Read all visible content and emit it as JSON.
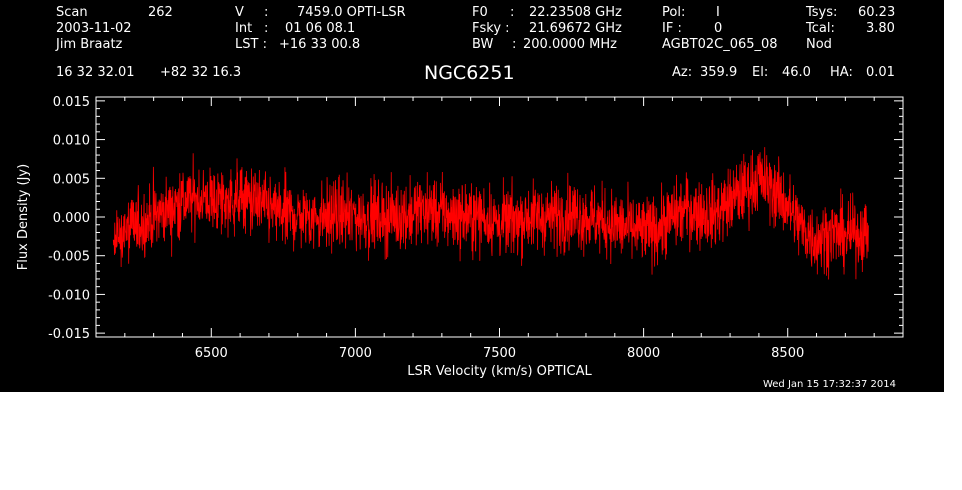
{
  "header": {
    "scan_label": "Scan",
    "scan_value": "262",
    "date": "2003-11-02",
    "observer": "Jim Braatz",
    "v_label": "V",
    "v_sep": ":",
    "v_value": "7459.0 OPTI-LSR",
    "int_label": "Int",
    "int_sep": ":",
    "int_value": "01 06 08.1",
    "lst_label": "LST :",
    "lst_value": "+16 33 00.8",
    "f0_label": "F0",
    "f0_sep": ":",
    "f0_value": "22.23508 GHz",
    "fsky_label": "Fsky :",
    "fsky_value": "21.69672 GHz",
    "bw_label": "BW",
    "bw_sep": ":",
    "bw_value": "200.0000 MHz",
    "pol_label": "Pol:",
    "pol_value": "I",
    "if_label": "IF :",
    "if_value": "0",
    "project": "AGBT02C_065_08",
    "tsys_label": "Tsys:",
    "tsys_value": "60.23",
    "tcal_label": "Tcal:",
    "tcal_value": "3.80",
    "mode": "Nod",
    "ra": "16 32 32.01",
    "dec": "+82 32 16.3",
    "object": "NGC6251",
    "az_label": "Az:",
    "az_value": "359.9",
    "el_label": "El:",
    "el_value": "46.0",
    "ha_label": "HA:",
    "ha_value": "0.01"
  },
  "timestamp": "Wed Jan 15 17:32:37 2014",
  "colors": {
    "background": "#000000",
    "axes": "#ffffff",
    "trace": "#ff0000"
  },
  "chart_data": {
    "type": "line",
    "title": "NGC6251",
    "xlabel": "LSR Velocity (km/s) OPTICAL",
    "ylabel": "Flux Density (Jy)",
    "xlim": [
      6100,
      8900
    ],
    "ylim": [
      -0.0155,
      0.0155
    ],
    "xticks": [
      6500,
      7000,
      7500,
      8000,
      8500
    ],
    "xtick_labels": [
      "6500",
      "7000",
      "7500",
      "8000",
      "8500"
    ],
    "yticks": [
      0.015,
      0.01,
      0.005,
      0.0,
      -0.005,
      -0.01,
      -0.015
    ],
    "ytick_labels": [
      "0.015",
      "0.010",
      "0.005",
      "0.000",
      "-0.005",
      "-0.010",
      "-0.015"
    ],
    "grid": false,
    "series": [
      {
        "color": "#ff0000",
        "x": [
          6160,
          6200,
          6250,
          6300,
          6350,
          6400,
          6450,
          6500,
          6550,
          6600,
          6650,
          6700,
          6750,
          6800,
          6850,
          6900,
          6950,
          7000,
          7050,
          7100,
          7150,
          7200,
          7250,
          7300,
          7350,
          7400,
          7450,
          7500,
          7550,
          7600,
          7650,
          7700,
          7750,
          7800,
          7850,
          7900,
          7950,
          8000,
          8050,
          8100,
          8150,
          8200,
          8250,
          8300,
          8350,
          8400,
          8450,
          8500,
          8550,
          8600,
          8650,
          8700,
          8750,
          8780
        ],
        "y": [
          -0.003,
          -0.002,
          -0.001,
          0.0,
          0.001,
          0.002,
          0.0025,
          0.002,
          0.002,
          0.0025,
          0.002,
          0.001,
          0.0005,
          0.0,
          0.0,
          0.0,
          0.0005,
          0.0,
          0.0,
          0.0,
          0.0,
          0.0005,
          0.001,
          0.0005,
          0.0,
          0.0,
          0.0,
          -0.001,
          -0.0005,
          0.0,
          0.0,
          0.0,
          0.0005,
          0.0,
          -0.0005,
          -0.001,
          -0.0015,
          -0.002,
          -0.0015,
          0.0,
          0.001,
          0.0005,
          0.0005,
          0.002,
          0.0035,
          0.005,
          0.0035,
          0.0015,
          -0.0015,
          -0.003,
          -0.002,
          -0.0025,
          -0.002,
          -0.002
        ],
        "noise_rms": 0.0022
      }
    ]
  }
}
